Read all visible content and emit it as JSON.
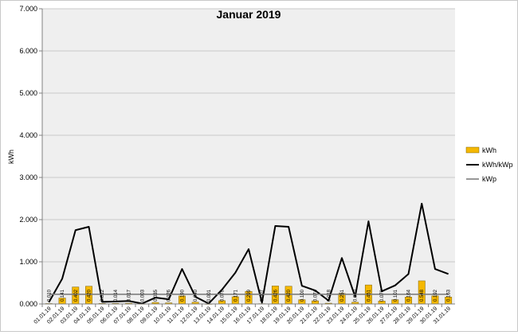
{
  "chart_data": {
    "type": "bar",
    "title": "Januar 2019",
    "ylabel": "kWh",
    "xlabel": "",
    "ylim": [
      0,
      7
    ],
    "y_ticks": [
      "0.000",
      "1.000",
      "2.000",
      "3.000",
      "4.000",
      "5.000",
      "6.000",
      "7.000"
    ],
    "grid": true,
    "legend_position": "right",
    "categories": [
      "01.01.19",
      "02.01.19",
      "03.01.19",
      "04.01.19",
      "05.01.19",
      "06.01.19",
      "07.01.19",
      "08.01.19",
      "09.01.19",
      "10.01.19",
      "11.01.19",
      "12.01.19",
      "13.01.19",
      "14.01.19",
      "15.01.19",
      "16.01.19",
      "17.01.19",
      "18.01.19",
      "19.01.19",
      "20.01.19",
      "21.01.19",
      "22.01.19",
      "23.01.19",
      "24.01.19",
      "25.01.19",
      "26.01.19",
      "27.01.19",
      "28.01.19",
      "29.01.19",
      "30.01.19",
      "31.01.19"
    ],
    "series": [
      {
        "name": "kWh",
        "type": "bar",
        "color": "#f5b800",
        "values": [
          0.01,
          0.141,
          0.402,
          0.42,
          0.012,
          0.014,
          0.017,
          0.003,
          0.035,
          0.026,
          0.19,
          0.04,
          0.001,
          0.078,
          0.171,
          0.299,
          0.007,
          0.426,
          0.42,
          0.1,
          0.074,
          0.018,
          0.251,
          0.04,
          0.451,
          0.07,
          0.101,
          0.164,
          0.548,
          0.192,
          0.163
        ],
        "labels": [
          "0.010",
          "0.141",
          "0.402",
          "0.420",
          "0.012",
          "0.014",
          "0.017",
          "0.003",
          "0.035",
          "0.026",
          "0.190",
          "0.040",
          "0.001",
          "0.078",
          "0.171",
          "0.299",
          "0.007",
          "0.426",
          "0.420",
          "0.100",
          "0.074",
          "0.018",
          "0.251",
          "0.040",
          "0.451",
          "0.070",
          "0.101",
          "0.164",
          "0.548",
          "0.192",
          "0.163"
        ]
      },
      {
        "name": "kWh/kWp",
        "type": "line",
        "color": "#000000",
        "values": [
          0.04,
          0.6,
          1.75,
          1.83,
          0.05,
          0.06,
          0.07,
          0.01,
          0.15,
          0.11,
          0.83,
          0.17,
          0.01,
          0.34,
          0.74,
          1.3,
          0.03,
          1.85,
          1.83,
          0.43,
          0.32,
          0.08,
          1.09,
          0.17,
          1.96,
          0.3,
          0.44,
          0.71,
          2.38,
          0.83,
          0.71
        ]
      },
      {
        "name": "kWp",
        "type": "line",
        "color": "#7f7f7f",
        "values": [
          0.23,
          0.23,
          0.23,
          0.23,
          0.23,
          0.23,
          0.23,
          0.23,
          0.23,
          0.23,
          0.23,
          0.23,
          0.23,
          0.23,
          0.23,
          0.23,
          0.23,
          0.23,
          0.23,
          0.23,
          0.23,
          0.23,
          0.23,
          0.23,
          0.23,
          0.23,
          0.23,
          0.23,
          0.23,
          0.23,
          0.23
        ]
      }
    ]
  }
}
